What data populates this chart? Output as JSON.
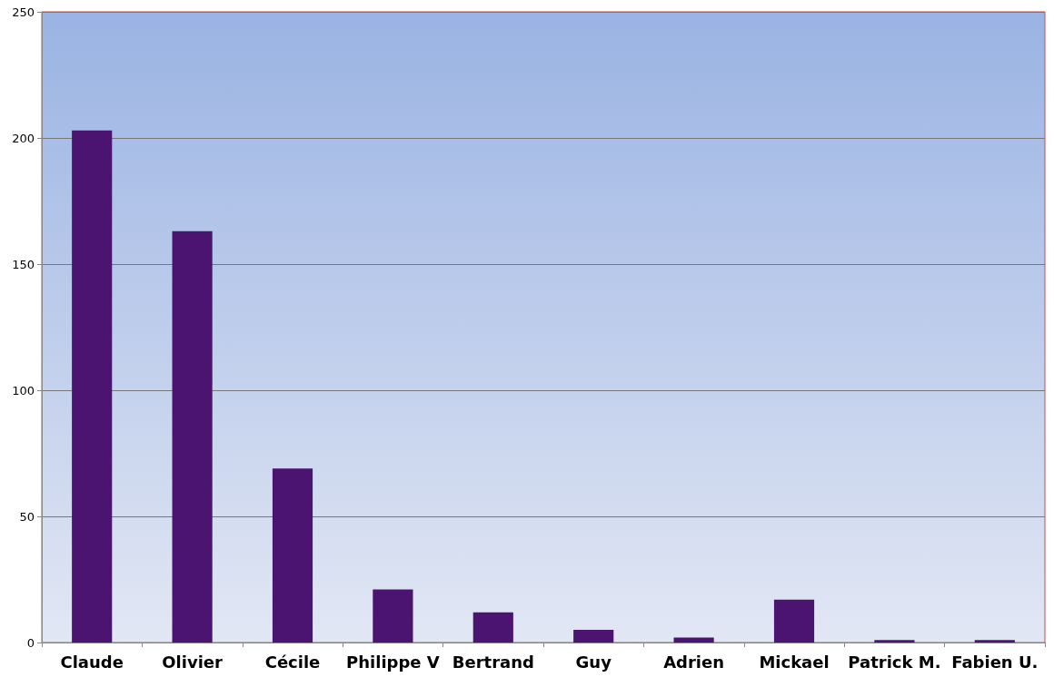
{
  "chart_data": {
    "type": "bar",
    "categories": [
      "Claude",
      "Olivier",
      "Cécile",
      "Philippe V",
      "Bertrand",
      "Guy",
      "Adrien",
      "Mickael",
      "Patrick M.",
      "Fabien U."
    ],
    "values": [
      203,
      163,
      69,
      21,
      12,
      5,
      2,
      17,
      1,
      1
    ],
    "color": "#4a1470",
    "ylim": [
      0,
      250
    ],
    "yticks": [
      0,
      50,
      100,
      150,
      200,
      250
    ],
    "grid": "y"
  }
}
